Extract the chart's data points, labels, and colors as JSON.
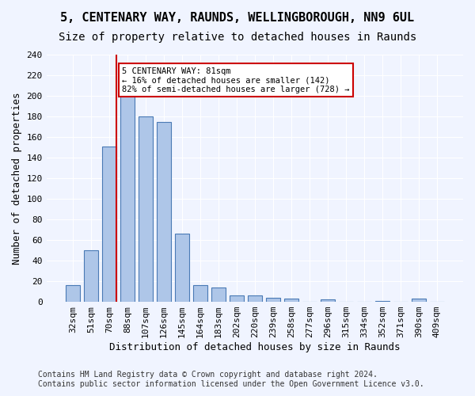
{
  "title1": "5, CENTENARY WAY, RAUNDS, WELLINGBOROUGH, NN9 6UL",
  "title2": "Size of property relative to detached houses in Raunds",
  "xlabel": "Distribution of detached houses by size in Raunds",
  "ylabel": "Number of detached properties",
  "categories": [
    "32sqm",
    "51sqm",
    "70sqm",
    "88sqm",
    "107sqm",
    "126sqm",
    "145sqm",
    "164sqm",
    "183sqm",
    "202sqm",
    "220sqm",
    "239sqm",
    "258sqm",
    "277sqm",
    "296sqm",
    "315sqm",
    "334sqm",
    "352sqm",
    "371sqm",
    "390sqm",
    "409sqm"
  ],
  "values": [
    16,
    50,
    151,
    202,
    180,
    175,
    66,
    16,
    14,
    6,
    6,
    4,
    3,
    0,
    2,
    0,
    0,
    1,
    0,
    3,
    0
  ],
  "bar_color": "#aec6e8",
  "bar_edge_color": "#4a7ab5",
  "property_sqm": 81,
  "property_bin_index": 2,
  "vline_color": "#cc0000",
  "annotation_text": "5 CENTENARY WAY: 81sqm\n← 16% of detached houses are smaller (142)\n82% of semi-detached houses are larger (728) →",
  "annotation_box_color": "#ffffff",
  "annotation_box_edge_color": "#cc0000",
  "footer_text": "Contains HM Land Registry data © Crown copyright and database right 2024.\nContains public sector information licensed under the Open Government Licence v3.0.",
  "ylim": [
    0,
    240
  ],
  "yticks": [
    0,
    20,
    40,
    60,
    80,
    100,
    120,
    140,
    160,
    180,
    200,
    220,
    240
  ],
  "background_color": "#f0f4ff",
  "grid_color": "#ffffff",
  "title1_fontsize": 11,
  "title2_fontsize": 10,
  "xlabel_fontsize": 9,
  "ylabel_fontsize": 9,
  "tick_fontsize": 8,
  "footer_fontsize": 7
}
